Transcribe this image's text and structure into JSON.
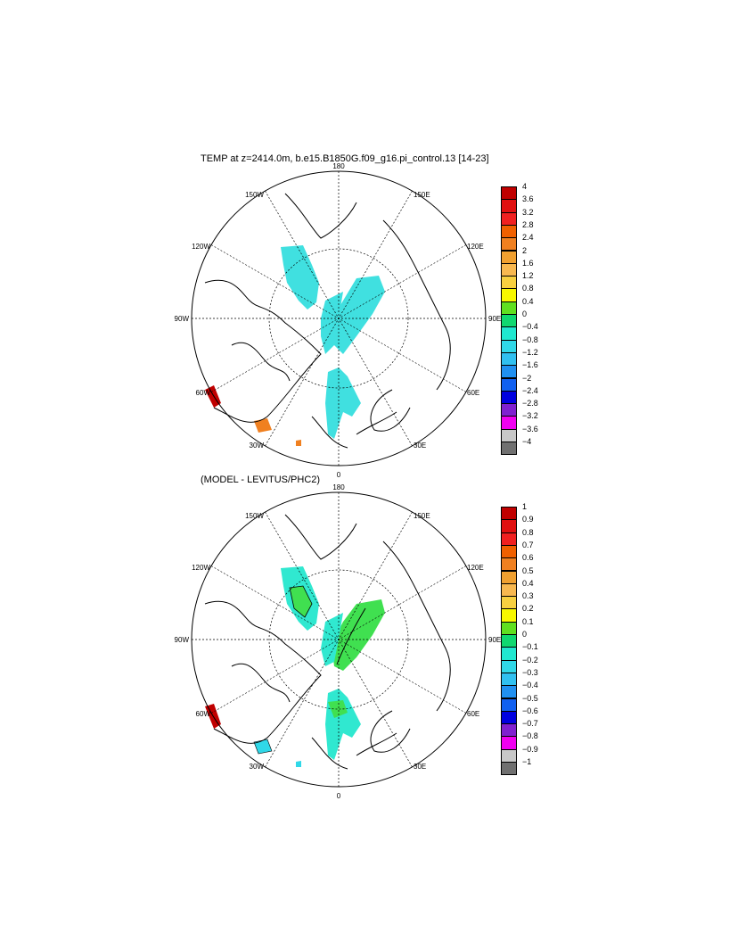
{
  "panels": [
    {
      "title": "TEMP at z=2414.0m, b.e15.B1850G.f09_g16.pi_control.13 [14-23]",
      "lon_labels": {
        "top": "180",
        "bottom": "0",
        "left": "90W",
        "right": "90E",
        "ul30": "150W",
        "ul60": "120W",
        "ll60": "60W",
        "ll30": "30W",
        "ur30": "150E",
        "ur60": "120E",
        "lr60": "60E",
        "lr30": "30E"
      },
      "colorbar": {
        "labels": [
          "4",
          "3.6",
          "3.2",
          "2.8",
          "2.4",
          "2",
          "1.6",
          "1.2",
          "0.8",
          "0.4",
          "0",
          "−0.4",
          "−0.8",
          "−1.2",
          "−1.6",
          "−2",
          "−2.4",
          "−2.8",
          "−3.2",
          "−3.6",
          "−4"
        ],
        "colors": [
          "#c00000",
          "#e01010",
          "#f02020",
          "#f06000",
          "#f08020",
          "#f0a030",
          "#f8b850",
          "#f8d040",
          "#f8f800",
          "#60e020",
          "#10d870",
          "#20e8d0",
          "#30d8e8",
          "#30c0f0",
          "#2090f0",
          "#1060f0",
          "#0000e0",
          "#8020d0",
          "#f000f0",
          "#c8c8c8",
          "#707070"
        ]
      },
      "fill_main": "#40e0e0"
    },
    {
      "title": "(MODEL - LEVITUS/PHC2)",
      "lon_labels": {
        "top": "180",
        "bottom": "0",
        "left": "90W",
        "right": "90E",
        "ul30": "150W",
        "ul60": "120W",
        "ll60": "60W",
        "ll30": "30W",
        "ur30": "150E",
        "ur60": "120E",
        "lr60": "60E",
        "lr30": "30E"
      },
      "colorbar": {
        "labels": [
          "1",
          "0.9",
          "0.8",
          "0.7",
          "0.6",
          "0.5",
          "0.4",
          "0.3",
          "0.2",
          "0.1",
          "0",
          "−0.1",
          "−0.2",
          "−0.3",
          "−0.4",
          "−0.5",
          "−0.6",
          "−0.7",
          "−0.8",
          "−0.9",
          "−1"
        ],
        "colors": [
          "#c00000",
          "#e01010",
          "#f02020",
          "#f06000",
          "#f08020",
          "#f0a030",
          "#f8b850",
          "#f8d040",
          "#f8f800",
          "#60e020",
          "#10d870",
          "#20e8d0",
          "#30d8e8",
          "#30c0f0",
          "#2090f0",
          "#1060f0",
          "#0000e0",
          "#8020d0",
          "#f000f0",
          "#c8c8c8",
          "#707070"
        ]
      },
      "fill_main": "#30e8d0",
      "fill_green": "#40e050"
    }
  ]
}
